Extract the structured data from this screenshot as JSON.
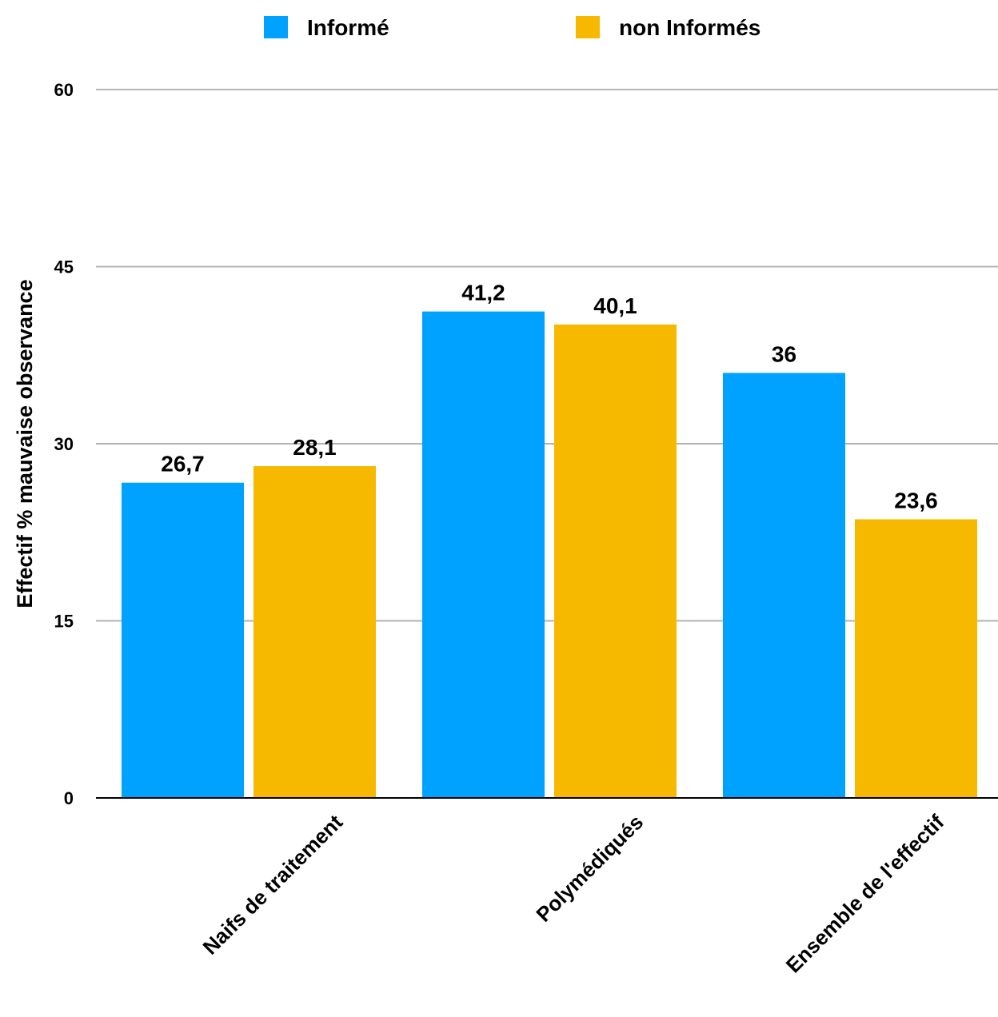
{
  "chart_data": {
    "type": "bar",
    "categories": [
      "Naifs de traitement",
      "Polymédiqués",
      "Ensemble de l'effectif"
    ],
    "series": [
      {
        "name": "Informé",
        "values": [
          26.7,
          41.2,
          36
        ],
        "labels": [
          "26,7",
          "41,2",
          "36"
        ],
        "color": "#00a2ff"
      },
      {
        "name": "non Informés",
        "values": [
          28.1,
          40.1,
          23.6
        ],
        "labels": [
          "28,1",
          "40,1",
          "23,6"
        ],
        "color": "#f6b900"
      }
    ],
    "title": "",
    "xlabel": "",
    "ylabel": "Effectif % mauvaise observance",
    "ylim": [
      0,
      60
    ],
    "yticks": [
      0,
      15,
      30,
      45,
      60
    ],
    "grid": true,
    "legend_position": "top",
    "grid_color": "#b3b3b3",
    "axis_color": "#000000"
  }
}
